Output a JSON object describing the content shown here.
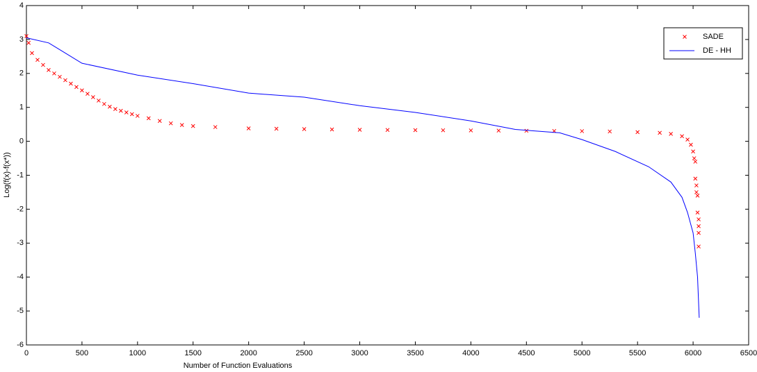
{
  "chart_data": {
    "type": "line",
    "xlabel": "Number of Function Evaluations",
    "ylabel": "Log(f(x)-f(x*))",
    "xlim": [
      0,
      6500
    ],
    "xticks": [
      0,
      500,
      1000,
      1500,
      2000,
      2500,
      3000,
      3500,
      4000,
      4500,
      5000,
      5500,
      6000,
      6500
    ],
    "ylim": [
      -6,
      4
    ],
    "yticks": [
      -6,
      -5,
      -4,
      -3,
      -2,
      -1,
      0,
      1,
      2,
      3,
      4
    ],
    "legend": "upper right",
    "series": [
      {
        "name": "SADE",
        "type": "scatter",
        "color": "#ff0000",
        "x": [
          0,
          20,
          50,
          100,
          150,
          200,
          250,
          300,
          350,
          400,
          450,
          500,
          550,
          600,
          650,
          700,
          750,
          800,
          850,
          900,
          950,
          1000,
          1100,
          1200,
          1300,
          1400,
          1500,
          1700,
          2000,
          2250,
          2500,
          2750,
          3000,
          3250,
          3500,
          3750,
          4000,
          4250,
          4500,
          4750,
          5000,
          5250,
          5500,
          5700,
          5800,
          5900,
          5950,
          5980,
          6000,
          6010,
          6020,
          6020,
          6030,
          6030,
          6040,
          6040,
          6050,
          6050,
          6050,
          6050
        ],
        "values": [
          3.1,
          2.9,
          2.6,
          2.4,
          2.25,
          2.1,
          2.0,
          1.9,
          1.8,
          1.7,
          1.6,
          1.5,
          1.4,
          1.3,
          1.2,
          1.1,
          1.02,
          0.95,
          0.9,
          0.85,
          0.8,
          0.75,
          0.68,
          0.6,
          0.53,
          0.48,
          0.45,
          0.42,
          0.38,
          0.37,
          0.36,
          0.35,
          0.34,
          0.335,
          0.33,
          0.325,
          0.32,
          0.315,
          0.31,
          0.305,
          0.3,
          0.29,
          0.27,
          0.25,
          0.22,
          0.15,
          0.05,
          -0.1,
          -0.3,
          -0.5,
          -0.6,
          -1.1,
          -1.3,
          -1.5,
          -1.6,
          -2.1,
          -2.3,
          -2.5,
          -2.7,
          -3.1
        ]
      },
      {
        "name": "DE - HH",
        "type": "line",
        "color": "#0000ff",
        "x": [
          0,
          200,
          300,
          500,
          1000,
          1500,
          2000,
          2500,
          3000,
          3500,
          4000,
          4400,
          4800,
          5000,
          5300,
          5600,
          5800,
          5900,
          5950,
          6000,
          6020,
          6040,
          6050,
          6055
        ],
        "values": [
          3.05,
          2.9,
          2.7,
          2.3,
          1.95,
          1.7,
          1.42,
          1.3,
          1.05,
          0.85,
          0.6,
          0.35,
          0.25,
          0.05,
          -0.3,
          -0.75,
          -1.2,
          -1.65,
          -2.1,
          -2.7,
          -3.3,
          -4.0,
          -4.8,
          -5.2
        ]
      }
    ]
  }
}
